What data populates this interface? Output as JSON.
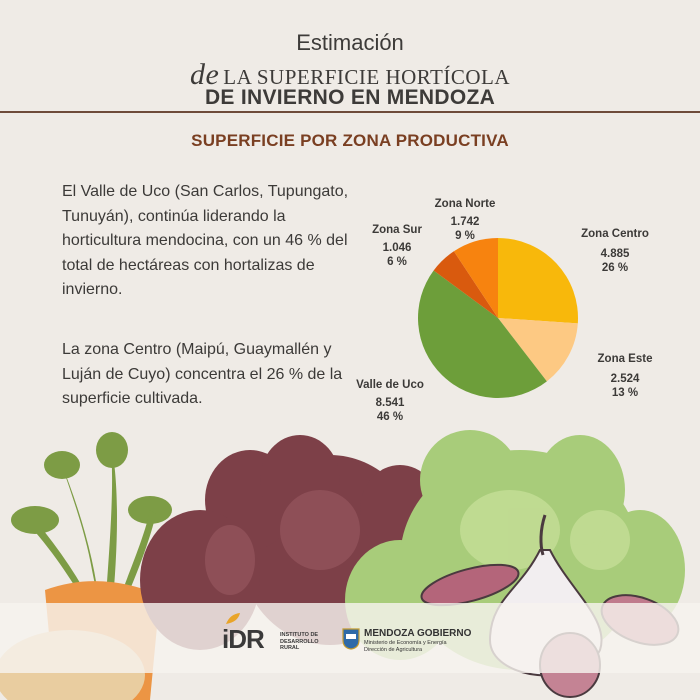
{
  "header": {
    "line1": "Estimación",
    "line2_prefix": "de",
    "line2": "LA SUPERFICIE HORTÍCOLA",
    "line3": "DE INVIERNO EN MENDOZA"
  },
  "section_title": "SUPERFICIE POR ZONA PRODUCTIVA",
  "paragraphs": [
    "El Valle de Uco (San Carlos, Tupungato, Tunuyán), continúa liderando la horticultura mendocina, con un 46 % del total de hectáreas con hortalizas de invierno.",
    "La zona Centro (Maipú, Guaymallén y Luján de Cuyo) concentra el 26 % de la superficie cultivada."
  ],
  "chart_data": {
    "type": "pie",
    "title": "",
    "slices": [
      {
        "name": "Zona Centro",
        "value_label": "4.885",
        "value": 4885,
        "percent": 26,
        "percent_label": "26 %",
        "color": "#f8b80b"
      },
      {
        "name": "Zona Este",
        "value_label": "2.524",
        "value": 2524,
        "percent": 13,
        "percent_label": "13 %",
        "color": "#fdc983"
      },
      {
        "name": "Valle de Uco",
        "value_label": "8.541",
        "value": 8541,
        "percent": 46,
        "percent_label": "46 %",
        "color": "#6d9e3a"
      },
      {
        "name": "Zona Sur",
        "value_label": "1.046",
        "value": 1046,
        "percent": 6,
        "percent_label": "6 %",
        "color": "#d95a0e"
      },
      {
        "name": "Zona Norte",
        "value_label": "1.742",
        "value": 1742,
        "percent": 9,
        "percent_label": "9 %",
        "color": "#f7830f"
      }
    ]
  },
  "footer": {
    "idr_logo": "iDR",
    "idr_text": "INSTITUTO DE DESARROLLO RURAL",
    "mza_title": "MENDOZA GOBIERNO",
    "mza_line1": "Ministerio de Economía y Energía",
    "mza_line2": "Dirección de Agricultura"
  }
}
